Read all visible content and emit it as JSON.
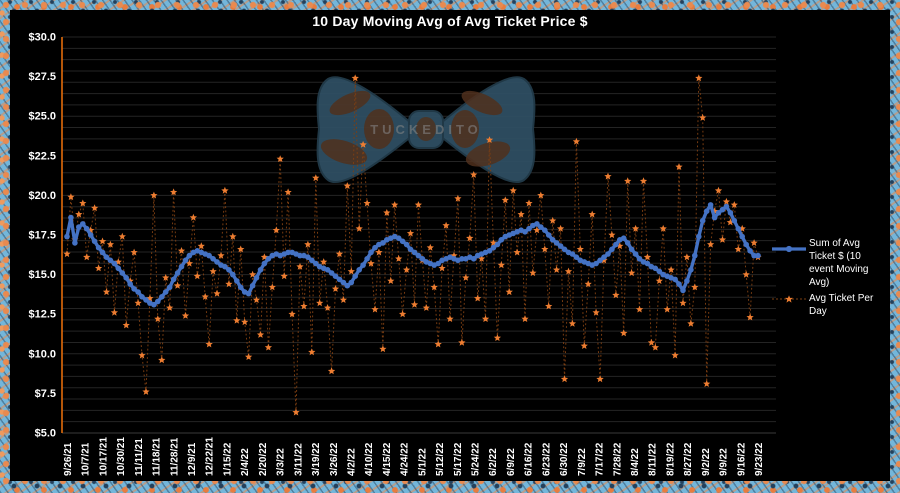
{
  "chart_title": "10 Day Moving Avg of Avg Ticket Price $",
  "watermark": {
    "text": "TUCKEDITO"
  },
  "legend": {
    "items": [
      {
        "label": "Sum of Avg Ticket $ (10 event Moving Avg)"
      },
      {
        "label": "Avg Ticket Per Day"
      }
    ]
  },
  "colors": {
    "background": "#000000",
    "text": "#FFFFFF",
    "grid": "#242424",
    "axis_line": "#E26B0A",
    "moving_avg": "#4472C4",
    "daily_marker": "#ED7D31",
    "daily_connector": "#7E3F12",
    "border_blue": "#74B6DA",
    "border_orange": "#E98A4F"
  },
  "chart_data": {
    "type": "line",
    "title": "10 Day Moving Avg of Avg Ticket Price $",
    "xlabel": "",
    "ylabel": "",
    "ylim": [
      5,
      30
    ],
    "grid": "horizontal",
    "legend_position": "right",
    "y_ticks": [
      {
        "value": 30,
        "label": "$30.0"
      },
      {
        "value": 27.5,
        "label": "$27.5"
      },
      {
        "value": 25,
        "label": "$25.0"
      },
      {
        "value": 22.5,
        "label": "$22.5"
      },
      {
        "value": 20,
        "label": "$20.0"
      },
      {
        "value": 17.5,
        "label": "$17.5"
      },
      {
        "value": 15,
        "label": "$15.0"
      },
      {
        "value": 12.5,
        "label": "$12.5"
      },
      {
        "value": 10,
        "label": "$10.0"
      },
      {
        "value": 7.5,
        "label": "$7.5"
      },
      {
        "value": 5,
        "label": "$5.0"
      }
    ],
    "x_labels": [
      "9/26/21",
      "10/7/21",
      "10/17/21",
      "10/30/21",
      "11/11/21",
      "11/18/21",
      "11/28/21",
      "12/9/21",
      "12/22/21",
      "1/15/22",
      "2/4/22",
      "2/20/22",
      "3/3/22",
      "3/11/22",
      "3/19/22",
      "3/26/22",
      "4/2/22",
      "4/10/22",
      "4/15/22",
      "4/24/22",
      "5/1/22",
      "5/12/22",
      "5/17/22",
      "5/24/22",
      "6/2/22",
      "6/9/22",
      "6/16/22",
      "6/23/22",
      "6/30/22",
      "7/9/22",
      "7/17/22",
      "7/28/22",
      "8/4/22",
      "8/11/22",
      "8/19/22",
      "8/27/22",
      "9/2/22",
      "9/9/22",
      "9/16/22",
      "9/23/22"
    ],
    "series": [
      {
        "name": "Sum of Avg Ticket $ (10 event Moving Avg)",
        "color": "#4472C4",
        "marker": "circle",
        "line_style": "solid",
        "values": [
          17.4,
          18.6,
          17.0,
          18.0,
          18.2,
          17.9,
          17.5,
          17.1,
          16.7,
          16.4,
          16.1,
          15.9,
          15.7,
          15.4,
          15.1,
          14.8,
          14.4,
          14.1,
          13.9,
          13.6,
          13.4,
          13.2,
          13.1,
          13.3,
          13.6,
          13.9,
          14.2,
          14.7,
          15.1,
          15.5,
          15.9,
          16.2,
          16.4,
          16.5,
          16.4,
          16.3,
          16.2,
          16.0,
          15.8,
          15.6,
          15.5,
          15.3,
          15.0,
          14.6,
          14.2,
          13.9,
          13.8,
          14.3,
          14.8,
          15.3,
          15.7,
          16.0,
          16.2,
          16.3,
          16.2,
          16.3,
          16.4,
          16.4,
          16.3,
          16.2,
          16.2,
          16.1,
          15.9,
          15.7,
          15.5,
          15.4,
          15.3,
          15.1,
          14.9,
          14.7,
          14.5,
          14.3,
          14.5,
          14.9,
          15.3,
          15.6,
          16.0,
          16.4,
          16.7,
          16.9,
          17.0,
          17.2,
          17.3,
          17.4,
          17.3,
          17.1,
          16.9,
          16.6,
          16.4,
          16.2,
          16.0,
          15.8,
          15.7,
          15.6,
          15.7,
          15.9,
          16.0,
          16.1,
          16.0,
          15.9,
          16.0,
          16.0,
          16.1,
          16.0,
          16.2,
          16.3,
          16.4,
          16.5,
          16.7,
          16.9,
          17.2,
          17.4,
          17.5,
          17.6,
          17.7,
          17.8,
          17.7,
          17.9,
          18.1,
          18.2,
          18.0,
          17.8,
          17.5,
          17.2,
          17.0,
          16.8,
          16.6,
          16.4,
          16.3,
          16.1,
          15.9,
          15.8,
          15.7,
          15.6,
          15.7,
          15.9,
          16.1,
          16.3,
          16.6,
          16.9,
          17.2,
          17.3,
          17.0,
          16.6,
          16.3,
          16.0,
          15.8,
          15.7,
          15.5,
          15.4,
          15.2,
          15.0,
          14.9,
          14.8,
          14.7,
          14.4,
          14.0,
          14.6,
          15.3,
          16.2,
          17.4,
          18.4,
          19.0,
          19.4,
          18.6,
          18.9,
          19.1,
          19.3,
          18.9,
          18.4,
          17.9,
          17.4,
          16.9,
          16.5,
          16.2,
          16.2
        ]
      },
      {
        "name": "Avg Ticket Per Day",
        "color": "#ED7D31",
        "marker": "star",
        "line_style": "dashed",
        "line_color": "#7E3F12",
        "values": [
          16.3,
          19.9,
          17.2,
          18.8,
          19.5,
          16.1,
          17.8,
          19.2,
          15.4,
          17.1,
          13.9,
          16.9,
          12.6,
          15.8,
          17.4,
          11.8,
          14.6,
          16.4,
          13.2,
          9.9,
          7.6,
          13.5,
          20.0,
          12.2,
          9.6,
          14.8,
          12.9,
          20.2,
          14.3,
          16.5,
          12.4,
          15.7,
          18.6,
          14.9,
          16.8,
          13.6,
          10.6,
          15.2,
          13.8,
          16.2,
          20.3,
          14.4,
          17.4,
          12.1,
          16.6,
          12.0,
          9.8,
          15.0,
          13.4,
          11.2,
          16.1,
          10.4,
          14.2,
          17.8,
          22.3,
          14.9,
          20.2,
          12.5,
          6.3,
          15.5,
          13.0,
          16.9,
          10.1,
          21.1,
          13.2,
          15.8,
          12.9,
          8.9,
          14.1,
          16.3,
          13.4,
          20.6,
          15.2,
          27.4,
          17.9,
          23.2,
          19.5,
          15.7,
          12.8,
          16.4,
          10.3,
          18.9,
          14.6,
          19.4,
          16.0,
          12.5,
          15.3,
          17.6,
          13.1,
          19.4,
          15.9,
          12.9,
          16.7,
          14.2,
          10.6,
          15.4,
          18.1,
          12.2,
          16.2,
          19.8,
          10.7,
          14.8,
          17.3,
          21.3,
          13.5,
          16.0,
          12.2,
          23.5,
          17.0,
          11.0,
          15.6,
          19.7,
          13.9,
          20.3,
          16.4,
          18.8,
          12.2,
          19.5,
          15.1,
          17.8,
          20.0,
          16.6,
          13.0,
          18.4,
          15.3,
          17.9,
          8.4,
          15.2,
          11.9,
          23.4,
          16.6,
          10.5,
          14.4,
          18.8,
          12.6,
          8.4,
          15.9,
          21.2,
          17.5,
          13.7,
          16.8,
          11.3,
          20.9,
          15.1,
          17.9,
          12.8,
          20.9,
          16.1,
          10.7,
          10.4,
          14.6,
          17.9,
          12.8,
          15.3,
          9.9,
          21.8,
          13.2,
          16.1,
          11.9,
          14.2,
          27.4,
          24.9,
          8.1,
          16.9,
          19.0,
          20.3,
          17.2,
          19.6,
          18.3,
          19.4,
          16.6,
          17.9,
          15.0,
          12.3,
          17.0,
          16.1
        ]
      }
    ]
  }
}
